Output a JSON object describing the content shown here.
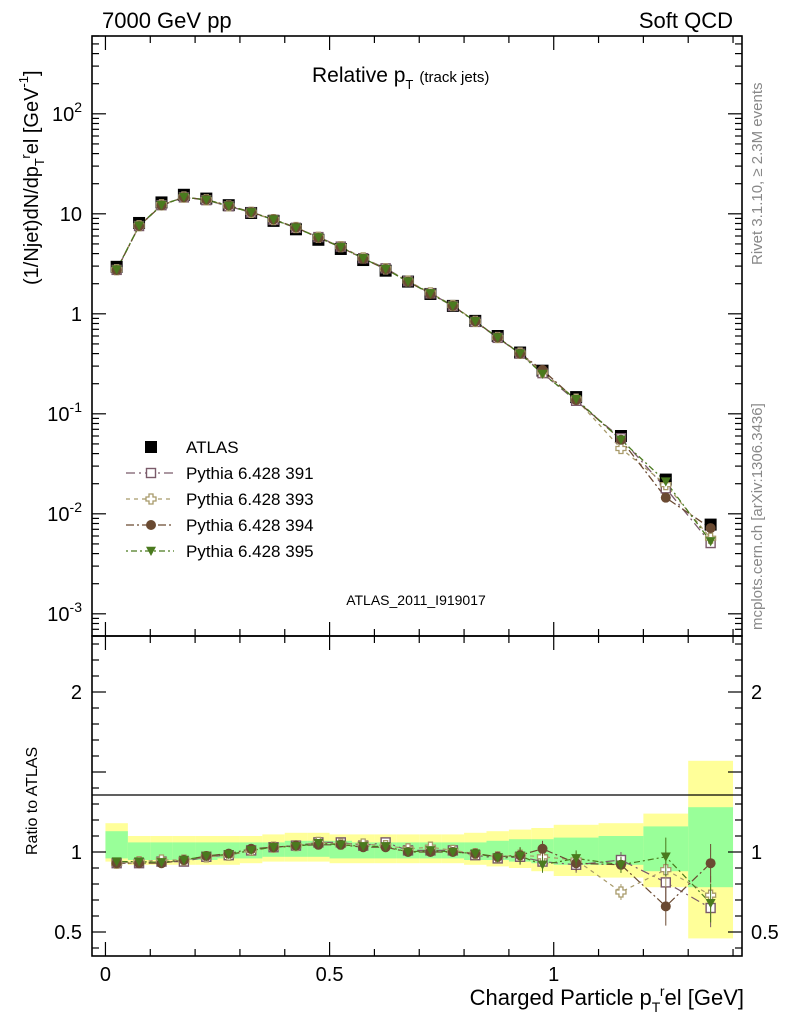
{
  "header": {
    "left": "7000 GeV pp",
    "right": "Soft QCD"
  },
  "side_text": {
    "rivet": "Rivet 3.1.10, ≥ 2.3M events",
    "mcplots": "mcplots.cern.ch [arXiv:1306.3436]"
  },
  "watermark": "ATLAS_2011_I919017",
  "chart_data": [
    {
      "type": "scatter",
      "title": "Relative p_T (track jets)",
      "title_main": "Relative p",
      "title_sub": "T",
      "title_small": "(track jets)",
      "ylabel": "(1/Njet)dN/dp_T^rel [GeV^-1]",
      "ylabel_parts": [
        "(1/Njet)dN/dp",
        "T",
        "r",
        "el [GeV",
        "-1",
        "]"
      ],
      "yscale": "log",
      "ylim": [
        0.0006,
        600
      ],
      "xlim": [
        -0.03,
        1.42
      ],
      "yticks": [
        {
          "v": 0.001,
          "base": "10",
          "exp": "-3"
        },
        {
          "v": 0.01,
          "base": "10",
          "exp": "-2"
        },
        {
          "v": 0.1,
          "base": "10",
          "exp": "-1"
        },
        {
          "v": 1,
          "base": "1",
          "exp": ""
        },
        {
          "v": 10,
          "base": "10",
          "exp": ""
        },
        {
          "v": 100,
          "base": "10",
          "exp": "2"
        }
      ],
      "legend_position": "middle-left",
      "x": [
        0.025,
        0.075,
        0.125,
        0.175,
        0.225,
        0.275,
        0.325,
        0.375,
        0.425,
        0.475,
        0.525,
        0.575,
        0.625,
        0.675,
        0.725,
        0.775,
        0.825,
        0.875,
        0.925,
        0.975,
        1.05,
        1.15,
        1.25,
        1.35
      ],
      "series": [
        {
          "name": "ATLAS",
          "marker": "square-filled",
          "color": "#000000",
          "values": [
            2.95,
            8.1,
            13.0,
            15.5,
            14.2,
            12.2,
            10.2,
            8.5,
            7.0,
            5.5,
            4.45,
            3.45,
            2.7,
            2.1,
            1.58,
            1.2,
            0.85,
            0.6,
            0.41,
            0.27,
            0.147,
            0.06,
            0.022,
            0.0078
          ]
        },
        {
          "name": "Pythia 6.428 391",
          "marker": "square-open",
          "color": "#7a5a6a",
          "values": [
            2.75,
            7.55,
            12.2,
            14.6,
            13.7,
            11.9,
            10.3,
            8.7,
            7.25,
            5.85,
            4.7,
            3.6,
            2.85,
            2.12,
            1.6,
            1.2,
            0.83,
            0.575,
            0.4,
            0.255,
            0.135,
            0.057,
            0.018,
            0.0051
          ]
        },
        {
          "name": "Pythia 6.428 393",
          "marker": "cross-open",
          "color": "#a89a6a",
          "values": [
            2.76,
            7.6,
            12.3,
            14.7,
            13.8,
            12.0,
            10.35,
            8.75,
            7.3,
            5.82,
            4.7,
            3.62,
            2.82,
            2.13,
            1.62,
            1.21,
            0.84,
            0.58,
            0.405,
            0.262,
            0.14,
            0.045,
            0.0196,
            0.0057
          ]
        },
        {
          "name": "Pythia 6.428 394",
          "marker": "circle-filled",
          "color": "#6a4a32",
          "values": [
            2.74,
            7.55,
            12.15,
            14.65,
            13.85,
            12.1,
            10.4,
            8.8,
            7.3,
            5.75,
            4.65,
            3.55,
            2.8,
            2.1,
            1.58,
            1.2,
            0.84,
            0.58,
            0.4,
            0.275,
            0.137,
            0.055,
            0.0145,
            0.0072
          ]
        },
        {
          "name": "Pythia 6.428 395",
          "marker": "triangle-down-filled",
          "color": "#4a7a1e",
          "values": [
            2.77,
            7.6,
            12.2,
            14.7,
            13.8,
            12.0,
            10.3,
            8.75,
            7.25,
            5.8,
            4.65,
            3.58,
            2.8,
            2.1,
            1.6,
            1.2,
            0.84,
            0.58,
            0.4,
            0.25,
            0.14,
            0.055,
            0.021,
            0.0053
          ]
        }
      ],
      "legend": [
        {
          "label": "ATLAS",
          "marker": "square-filled",
          "color": "#000000"
        },
        {
          "label": "Pythia 6.428 391",
          "marker": "square-open",
          "color": "#7a5a6a"
        },
        {
          "label": "Pythia 6.428 393",
          "marker": "cross-open",
          "color": "#a89a6a"
        },
        {
          "label": "Pythia 6.428 394",
          "marker": "circle-filled",
          "color": "#6a4a32"
        },
        {
          "label": "Pythia 6.428 395",
          "marker": "triangle-down-filled",
          "color": "#4a7a1e"
        }
      ]
    },
    {
      "type": "scatter",
      "ylabel": "Ratio to ATLAS",
      "xlabel": "Charged Particle p_T^rel [GeV]",
      "xlabel_parts": [
        "Charged Particle p",
        "T",
        "r",
        "el [GeV]"
      ],
      "yscale": "linear",
      "ylim": [
        0.35,
        2.35
      ],
      "xlim": [
        -0.03,
        1.42
      ],
      "yticks": [
        {
          "v": 0.5,
          "label": "0.5"
        },
        {
          "v": 1,
          "label": "1"
        },
        {
          "v": 2,
          "label": "2"
        }
      ],
      "xticks": [
        {
          "v": 0,
          "label": "0"
        },
        {
          "v": 0.5,
          "label": "0.5"
        },
        {
          "v": 1,
          "label": "1"
        }
      ],
      "bin_edges": [
        0.0,
        0.05,
        0.1,
        0.15,
        0.2,
        0.25,
        0.3,
        0.35,
        0.4,
        0.45,
        0.5,
        0.55,
        0.6,
        0.65,
        0.7,
        0.75,
        0.8,
        0.85,
        0.9,
        0.95,
        1.0,
        1.1,
        1.2,
        1.3,
        1.4
      ],
      "band_yellow": [
        [
          0.94,
          1.18
        ],
        [
          0.92,
          1.1
        ],
        [
          0.92,
          1.1
        ],
        [
          0.92,
          1.1
        ],
        [
          0.92,
          1.1
        ],
        [
          0.92,
          1.1
        ],
        [
          0.93,
          1.1
        ],
        [
          0.94,
          1.11
        ],
        [
          0.94,
          1.12
        ],
        [
          0.94,
          1.12
        ],
        [
          0.93,
          1.11
        ],
        [
          0.93,
          1.11
        ],
        [
          0.93,
          1.11
        ],
        [
          0.93,
          1.11
        ],
        [
          0.93,
          1.11
        ],
        [
          0.93,
          1.11
        ],
        [
          0.92,
          1.12
        ],
        [
          0.91,
          1.13
        ],
        [
          0.9,
          1.14
        ],
        [
          0.88,
          1.15
        ],
        [
          0.85,
          1.17
        ],
        [
          0.84,
          1.18
        ],
        [
          0.78,
          1.24
        ],
        [
          0.46,
          1.57
        ]
      ],
      "band_green": [
        [
          0.96,
          1.13
        ],
        [
          0.95,
          1.06
        ],
        [
          0.95,
          1.06
        ],
        [
          0.95,
          1.06
        ],
        [
          0.95,
          1.06
        ],
        [
          0.96,
          1.06
        ],
        [
          0.96,
          1.06
        ],
        [
          0.97,
          1.06
        ],
        [
          0.97,
          1.07
        ],
        [
          0.97,
          1.07
        ],
        [
          0.96,
          1.07
        ],
        [
          0.96,
          1.06
        ],
        [
          0.96,
          1.06
        ],
        [
          0.96,
          1.06
        ],
        [
          0.96,
          1.06
        ],
        [
          0.96,
          1.06
        ],
        [
          0.95,
          1.06
        ],
        [
          0.95,
          1.07
        ],
        [
          0.94,
          1.08
        ],
        [
          0.93,
          1.08
        ],
        [
          0.92,
          1.09
        ],
        [
          0.92,
          1.1
        ],
        [
          0.88,
          1.16
        ],
        [
          0.78,
          1.28
        ]
      ],
      "series": [
        {
          "name": "Pythia 6.428 391",
          "marker": "square-open",
          "color": "#7a5a6a",
          "values": [
            0.93,
            0.93,
            0.94,
            0.94,
            0.97,
            0.98,
            1.01,
            1.03,
            1.04,
            1.06,
            1.06,
            1.04,
            1.06,
            1.01,
            1.01,
            1.01,
            0.98,
            0.96,
            0.97,
            0.94,
            0.92,
            0.95,
            0.81,
            0.65
          ]
        },
        {
          "name": "Pythia 6.428 393",
          "marker": "cross-open",
          "color": "#a89a6a",
          "values": [
            0.93,
            0.94,
            0.95,
            0.95,
            0.97,
            0.98,
            1.01,
            1.03,
            1.04,
            1.06,
            1.05,
            1.05,
            1.04,
            1.02,
            1.03,
            1.01,
            0.99,
            0.97,
            0.98,
            0.97,
            0.95,
            0.75,
            0.89,
            0.73
          ]
        },
        {
          "name": "Pythia 6.428 394",
          "marker": "circle-filled",
          "color": "#6a4a32",
          "values": [
            0.93,
            0.93,
            0.93,
            0.95,
            0.975,
            0.99,
            1.02,
            1.03,
            1.04,
            1.045,
            1.045,
            1.03,
            1.03,
            1.0,
            1.0,
            1.0,
            0.99,
            0.97,
            0.98,
            1.02,
            0.93,
            0.92,
            0.66,
            0.93
          ]
        },
        {
          "name": "Pythia 6.428 395",
          "marker": "triangle-down-filled",
          "color": "#4a7a1e",
          "values": [
            0.94,
            0.94,
            0.935,
            0.95,
            0.975,
            0.985,
            1.01,
            1.03,
            1.035,
            1.055,
            1.045,
            1.035,
            1.035,
            1.0,
            1.01,
            1.0,
            0.99,
            0.965,
            0.975,
            0.92,
            0.96,
            0.92,
            0.97,
            0.68
          ]
        }
      ]
    }
  ]
}
